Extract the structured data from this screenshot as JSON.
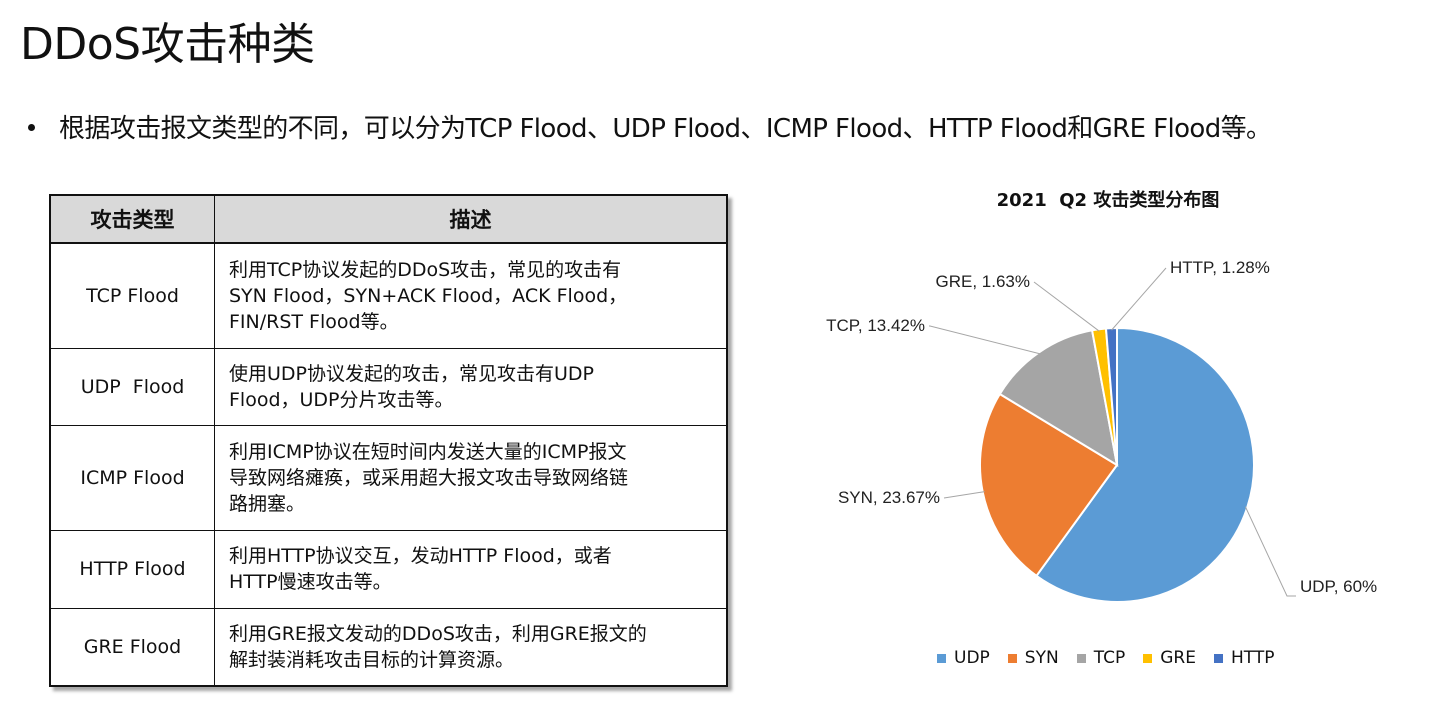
{
  "page": {
    "title": "DDoS攻击种类",
    "bullet": "根据攻击报文类型的不同，可以分为TCP Flood、UDP Flood、ICMP Flood、HTTP Flood和GRE Flood等。"
  },
  "table": {
    "headers": [
      "攻击类型",
      "描述"
    ],
    "rows": [
      {
        "type": "TCP Flood",
        "desc": [
          "利用TCP协议发起的DDoS攻击，常见的攻击有",
          "SYN Flood，SYN+ACK Flood，ACK Flood，",
          "FIN/RST Flood等。"
        ]
      },
      {
        "type": "UDP  Flood",
        "desc": [
          "使用UDP协议发起的攻击，常见攻击有UDP",
          "Flood，UDP分片攻击等。"
        ]
      },
      {
        "type": "ICMP Flood",
        "desc": [
          "利用ICMP协议在短时间内发送大量的ICMP报文",
          "导致网络瘫痪，或采用超大报文攻击导致网络链",
          "路拥塞。"
        ]
      },
      {
        "type": "HTTP Flood",
        "desc": [
          "利用HTTP协议交互，发动HTTP Flood，或者",
          "HTTP慢速攻击等。"
        ]
      },
      {
        "type": "GRE Flood",
        "desc": [
          "利用GRE报文发动的DDoS攻击，利用GRE报文的",
          "解封装消耗攻击目标的计算资源。"
        ]
      }
    ]
  },
  "chart_data": {
    "type": "pie",
    "title": "2021  Q2 攻击类型分布图",
    "slices": [
      {
        "name": "UDP",
        "value": 60,
        "label": "UDP, 60%",
        "color": "#5b9bd5"
      },
      {
        "name": "SYN",
        "value": 23.67,
        "label": "SYN, 23.67%",
        "color": "#ed7d31"
      },
      {
        "name": "TCP",
        "value": 13.42,
        "label": "TCP, 13.42%",
        "color": "#a5a5a5"
      },
      {
        "name": "GRE",
        "value": 1.63,
        "label": "GRE, 1.63%",
        "color": "#ffc000"
      },
      {
        "name": "HTTP",
        "value": 1.28,
        "label": "HTTP, 1.28%",
        "color": "#4472c4"
      }
    ],
    "legend": [
      "UDP",
      "SYN",
      "TCP",
      "GRE",
      "HTTP"
    ],
    "legend_position": "bottom"
  }
}
